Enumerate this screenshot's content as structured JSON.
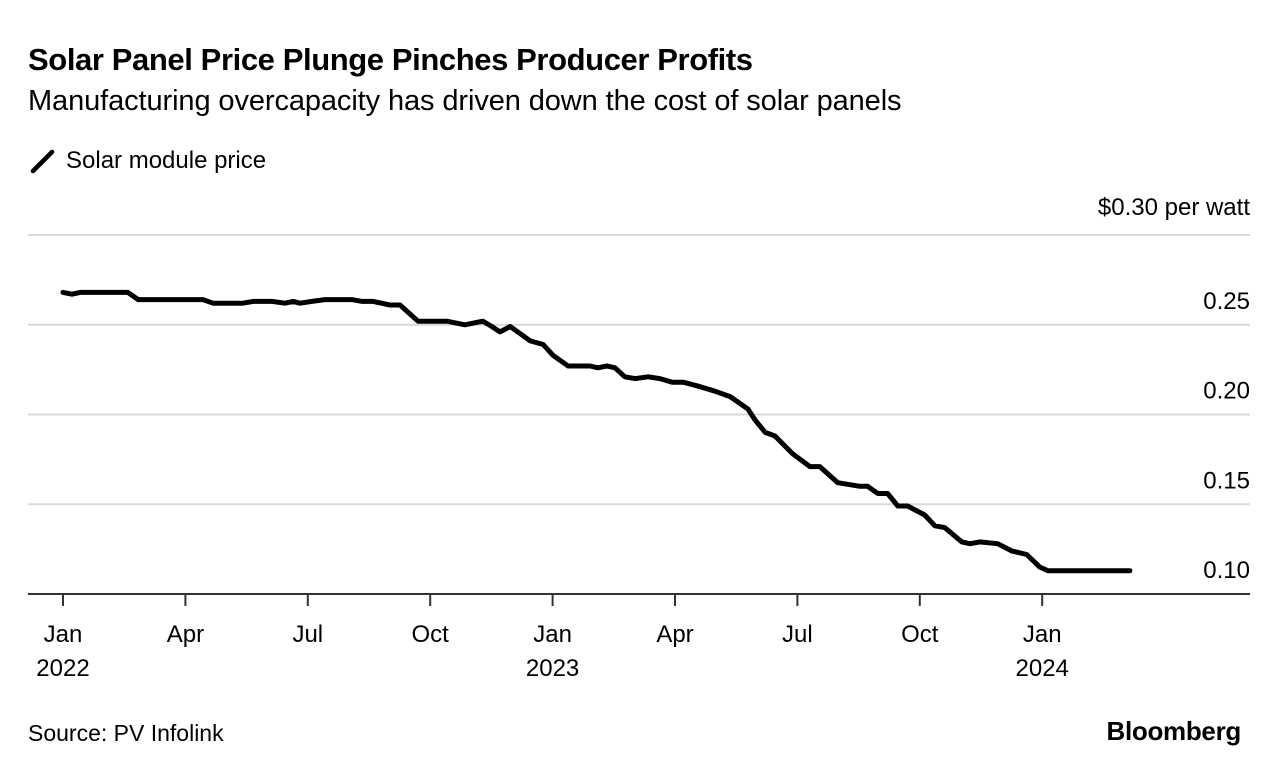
{
  "header": {
    "title": "Solar Panel Price Plunge Pinches Producer Profits",
    "subtitle": "Manufacturing overcapacity has driven down the cost of solar panels"
  },
  "legend": {
    "icon": "line-slash-icon",
    "label": "Solar module price"
  },
  "footer": {
    "source": "Source: PV Infolink",
    "brand": "Bloomberg"
  },
  "colors": {
    "line": "#000000",
    "grid": "#d9d9d9",
    "axis": "#333333"
  },
  "chart_data": {
    "type": "line",
    "title": "Solar Panel Price Plunge Pinches Producer Profits",
    "subtitle": "Manufacturing overcapacity has driven down the cost of solar panels",
    "xlabel": "",
    "ylabel": "$ per watt",
    "unit_label": "$0.30 per watt",
    "ylim": [
      0.1,
      0.3
    ],
    "y_ticks": [
      {
        "value": 0.3,
        "label": "$0.30 per watt"
      },
      {
        "value": 0.25,
        "label": "0.25"
      },
      {
        "value": 0.2,
        "label": "0.20"
      },
      {
        "value": 0.15,
        "label": "0.15"
      },
      {
        "value": 0.1,
        "label": "0.10"
      }
    ],
    "y_axis_position": "right",
    "grid": true,
    "legend_position": "top-left",
    "x_range_months": [
      -0.5,
      28.5
    ],
    "x_ticks": [
      {
        "month": 0,
        "label": "Jan",
        "year": "2022"
      },
      {
        "month": 3,
        "label": "Apr",
        "year": ""
      },
      {
        "month": 6,
        "label": "Jul",
        "year": ""
      },
      {
        "month": 9,
        "label": "Oct",
        "year": ""
      },
      {
        "month": 12,
        "label": "Jan",
        "year": "2023"
      },
      {
        "month": 15,
        "label": "Apr",
        "year": ""
      },
      {
        "month": 18,
        "label": "Jul",
        "year": ""
      },
      {
        "month": 21,
        "label": "Oct",
        "year": ""
      },
      {
        "month": 24,
        "label": "Jan",
        "year": "2024"
      }
    ],
    "series": [
      {
        "name": "Solar module price",
        "x_unit": "months since Jan 2022",
        "x": [
          0.0,
          0.22,
          0.42,
          1.59,
          1.84,
          3.43,
          3.68,
          4.41,
          4.66,
          5.12,
          5.44,
          5.64,
          5.81,
          6.1,
          6.42,
          7.08,
          7.33,
          7.6,
          8.01,
          8.26,
          8.7,
          9.41,
          9.85,
          10.29,
          10.51,
          10.71,
          10.96,
          11.45,
          11.77,
          12.01,
          12.38,
          12.92,
          13.11,
          13.33,
          13.53,
          13.77,
          14.02,
          14.34,
          14.63,
          14.93,
          15.2,
          15.54,
          15.98,
          16.35,
          16.79,
          16.96,
          17.21,
          17.45,
          17.89,
          18.31,
          18.55,
          18.99,
          19.53,
          19.72,
          19.97,
          20.21,
          20.46,
          20.7,
          21.12,
          21.37,
          21.61,
          22.03,
          22.23,
          22.47,
          22.91,
          23.25,
          23.62,
          23.94,
          24.14,
          26.15
        ],
        "values": [
          0.268,
          0.267,
          0.268,
          0.268,
          0.264,
          0.264,
          0.262,
          0.262,
          0.263,
          0.263,
          0.262,
          0.263,
          0.262,
          0.263,
          0.264,
          0.264,
          0.263,
          0.263,
          0.261,
          0.261,
          0.252,
          0.252,
          0.25,
          0.252,
          0.249,
          0.246,
          0.249,
          0.241,
          0.239,
          0.233,
          0.227,
          0.227,
          0.226,
          0.227,
          0.226,
          0.221,
          0.22,
          0.221,
          0.22,
          0.218,
          0.218,
          0.216,
          0.213,
          0.21,
          0.203,
          0.197,
          0.19,
          0.188,
          0.178,
          0.171,
          0.171,
          0.162,
          0.16,
          0.16,
          0.156,
          0.156,
          0.149,
          0.149,
          0.144,
          0.138,
          0.137,
          0.129,
          0.128,
          0.129,
          0.128,
          0.124,
          0.122,
          0.115,
          0.113,
          0.113
        ]
      }
    ]
  }
}
